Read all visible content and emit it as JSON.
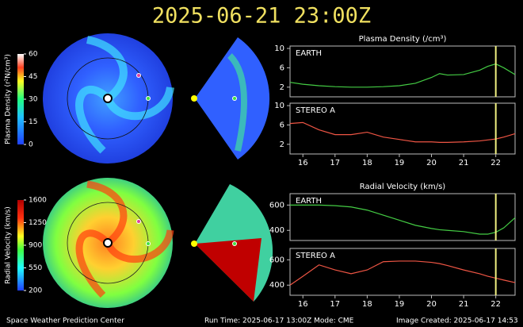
{
  "header": {
    "title": "2025-06-21  23:00Z"
  },
  "footer": {
    "left": "Space Weather Prediction Center",
    "middle": "Run Time: 2025-06-17 13:00Z  Mode: CME",
    "right": "Image Created: 2025-06-17 14:53"
  },
  "colorbars": [
    {
      "label": "Plasma Density (r²N/cm³)",
      "lim": [
        0,
        60
      ],
      "ticks": [
        0,
        15,
        30,
        45,
        60
      ]
    },
    {
      "label": "Radial Velocity (km/s)",
      "lim": [
        200,
        1600
      ],
      "ticks": [
        200,
        550,
        900,
        1250,
        1600
      ]
    }
  ],
  "chart_data": [
    {
      "type": "line",
      "title": "Plasma Density (/cm³)",
      "x": [
        15.6,
        16,
        16.5,
        17,
        17.5,
        18,
        18.5,
        19,
        19.5,
        20,
        20.25,
        20.5,
        21,
        21.5,
        21.75,
        22,
        22.25,
        22.6
      ],
      "series": [
        {
          "name": "EARTH",
          "color": "#44cc44",
          "values": [
            3,
            2.6,
            2.3,
            2.1,
            2,
            2,
            2.1,
            2.3,
            2.8,
            4,
            4.8,
            4.5,
            4.6,
            5.5,
            6.3,
            6.8,
            6,
            4.6
          ]
        }
      ],
      "xlim": [
        15.6,
        22.6
      ],
      "ylim": [
        0,
        10.5
      ],
      "yticks": [
        2,
        6,
        10
      ],
      "marker_x": 22
    },
    {
      "type": "line",
      "x": [
        15.6,
        16,
        16.5,
        17,
        17.5,
        18,
        18.5,
        19,
        19.5,
        20,
        20.25,
        20.5,
        21,
        21.5,
        21.75,
        22,
        22.25,
        22.6
      ],
      "series": [
        {
          "name": "STEREO A",
          "color": "#ee5544",
          "values": [
            6.3,
            6.5,
            5,
            4,
            4,
            4.5,
            3.5,
            3,
            2.5,
            2.5,
            2.4,
            2.4,
            2.5,
            2.7,
            2.9,
            3.1,
            3.5,
            4.2
          ]
        }
      ],
      "xlim": [
        15.6,
        22.6
      ],
      "ylim": [
        0,
        10.5
      ],
      "yticks": [
        2,
        6,
        10
      ],
      "xticks": [
        16,
        17,
        18,
        19,
        20,
        21,
        22
      ],
      "marker_x": 22
    },
    {
      "type": "line",
      "title": "Radial Velocity (km/s)",
      "x": [
        15.6,
        16,
        16.5,
        17,
        17.5,
        18,
        18.5,
        19,
        19.5,
        20,
        20.25,
        20.5,
        21,
        21.5,
        21.75,
        22,
        22.25,
        22.6
      ],
      "series": [
        {
          "name": "EARTH",
          "color": "#44cc44",
          "values": [
            600,
            600,
            600,
            595,
            585,
            560,
            520,
            480,
            440,
            415,
            405,
            400,
            390,
            370,
            370,
            385,
            420,
            500
          ]
        }
      ],
      "xlim": [
        15.6,
        22.6
      ],
      "ylim": [
        320,
        690
      ],
      "yticks": [
        400,
        600
      ],
      "marker_x": 22
    },
    {
      "type": "line",
      "x": [
        15.6,
        16,
        16.5,
        17,
        17.5,
        18,
        18.5,
        19,
        19.5,
        20,
        20.25,
        20.5,
        21,
        21.5,
        21.75,
        22,
        22.25,
        22.6
      ],
      "series": [
        {
          "name": "STEREO A",
          "color": "#ee5544",
          "values": [
            400,
            470,
            560,
            520,
            490,
            520,
            585,
            590,
            590,
            580,
            570,
            555,
            520,
            490,
            470,
            455,
            440,
            420
          ]
        }
      ],
      "xlim": [
        15.6,
        22.6
      ],
      "ylim": [
        320,
        690
      ],
      "yticks": [
        400,
        600
      ],
      "xticks": [
        16,
        17,
        18,
        19,
        20,
        21,
        22
      ],
      "marker_x": 22
    }
  ]
}
